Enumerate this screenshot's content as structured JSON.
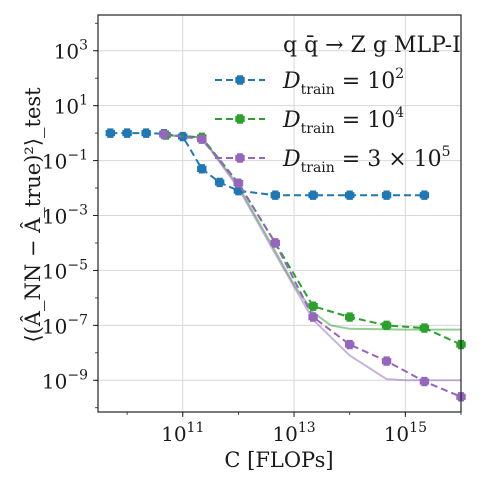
{
  "chart_data": {
    "type": "line",
    "title": "",
    "annotation": "q q̄ → Z g  MLP-I",
    "xlabel": "C [FLOPs]",
    "ylabel": "⟨(Â_NN − Â_true)²⟩_test",
    "x_scale": "log",
    "y_scale": "log",
    "xlim": [
      3000000000.0,
      1e+16
    ],
    "ylim": [
      7e-11,
      20000.0
    ],
    "x_ticks": [
      {
        "value": 100000000000.0,
        "base": "10",
        "exp": "11"
      },
      {
        "value": 10000000000000.0,
        "base": "10",
        "exp": "13"
      },
      {
        "value": 1000000000000000.0,
        "base": "10",
        "exp": "15"
      }
    ],
    "y_ticks": [
      {
        "value": 1000.0,
        "base": "10",
        "exp": "3"
      },
      {
        "value": 10.0,
        "base": "10",
        "exp": "1"
      },
      {
        "value": 0.1,
        "base": "10",
        "exp": "−1"
      },
      {
        "value": 0.001,
        "base": "10",
        "exp": "−3"
      },
      {
        "value": 1e-05,
        "base": "10",
        "exp": "−5"
      },
      {
        "value": 1e-07,
        "base": "10",
        "exp": "−7"
      },
      {
        "value": 1e-09,
        "base": "10",
        "exp": "−9"
      }
    ],
    "grid": true,
    "legend_position": "top-right",
    "series": [
      {
        "name": "D_train = 10^2",
        "label_parts": {
          "var": "D",
          "sub": "train",
          "rest": " = 10",
          "sup": "2"
        },
        "color": "#1f77b4",
        "x": [
          5000000000.0,
          10000000000.0,
          22000000000.0,
          46000000000.0,
          100000000000.0,
          220000000000.0,
          460000000000.0,
          1000000000000.0,
          4600000000000.0,
          22000000000000.0,
          100000000000000.0,
          460000000000000.0,
          2200000000000000.0
        ],
        "y": [
          1.0,
          1.0,
          1.0,
          0.95,
          0.75,
          0.05,
          0.016,
          0.008,
          0.0055,
          0.0055,
          0.0055,
          0.0055,
          0.0055
        ],
        "fit": null
      },
      {
        "name": "D_train = 10^4",
        "label_parts": {
          "var": "D",
          "sub": "train",
          "rest": " = 10",
          "sup": "4"
        },
        "color": "#2ca02c",
        "x": [
          50000000000.0,
          220000000000.0,
          1000000000000.0,
          4600000000000.0,
          22000000000000.0,
          100000000000000.0,
          460000000000000.0,
          2200000000000000.0,
          1e+16
        ],
        "y": [
          0.85,
          0.7,
          0.015,
          0.0001,
          5e-07,
          2e-07,
          1e-07,
          8e-08,
          2e-08
        ],
        "fit": {
          "x": [
            50000000000.0,
            220000000000.0,
            1000000000000.0,
            4600000000000.0,
            10000000000000.0,
            22000000000000.0,
            46000000000000.0,
            100000000000000.0,
            1000000000000000.0,
            1e+16
          ],
          "y": [
            0.85,
            0.7,
            0.012,
            5e-05,
            3e-06,
            3e-07,
            1e-07,
            7.5e-08,
            7e-08,
            7e-08
          ]
        }
      },
      {
        "name": "D_train = 3 × 10^5",
        "label_parts": {
          "var": "D",
          "sub": "train",
          "rest": " = 3 × 10",
          "sup": "5"
        },
        "color": "#9467bd",
        "x": [
          46000000000.0,
          220000000000.0,
          1000000000000.0,
          4600000000000.0,
          22000000000000.0,
          100000000000000.0,
          460000000000000.0,
          2200000000000000.0,
          1e+16
        ],
        "y": [
          0.9,
          0.6,
          0.015,
          0.0001,
          2e-07,
          2e-08,
          5e-09,
          9e-10,
          2.5e-10
        ],
        "fit": {
          "x": [
            50000000000.0,
            220000000000.0,
            1000000000000.0,
            4600000000000.0,
            22000000000000.0,
            100000000000000.0,
            460000000000000.0,
            1000000000000000.0,
            1e+16
          ],
          "y": [
            0.85,
            0.7,
            0.01,
            4e-05,
            1.6e-07,
            8e-09,
            1.1e-09,
            1e-09,
            1e-09
          ]
        }
      }
    ]
  }
}
